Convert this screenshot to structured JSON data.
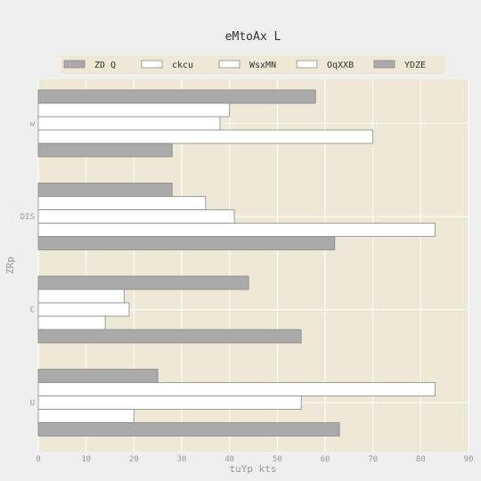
{
  "chart_data": {
    "type": "bar",
    "orientation": "horizontal",
    "title": "eMtoAx L",
    "xlabel": "tuYp kts",
    "ylabel": "ZRp",
    "xlim": [
      0,
      90
    ],
    "xticks": [
      0,
      10,
      20,
      30,
      40,
      50,
      60,
      70,
      80,
      90
    ],
    "categories": [
      "w",
      "DIS",
      "C",
      "U"
    ],
    "series": [
      {
        "name": "ZD Q",
        "color": "#aaaaaa",
        "values": [
          58,
          28,
          44,
          25
        ]
      },
      {
        "name": "ckcu",
        "color": "#ffffff",
        "values": [
          40,
          35,
          18,
          83
        ]
      },
      {
        "name": "WsxMN",
        "color": "#ffffff",
        "values": [
          38,
          41,
          19,
          55
        ]
      },
      {
        "name": "OqXXB",
        "color": "#ffffff",
        "values": [
          70,
          83,
          14,
          20
        ]
      },
      {
        "name": "YDZE",
        "color": "#aaaaaa",
        "values": [
          28,
          62,
          55,
          63
        ]
      }
    ],
    "grid": true,
    "legend_position": "top",
    "plot_background": "#efe8d6"
  }
}
